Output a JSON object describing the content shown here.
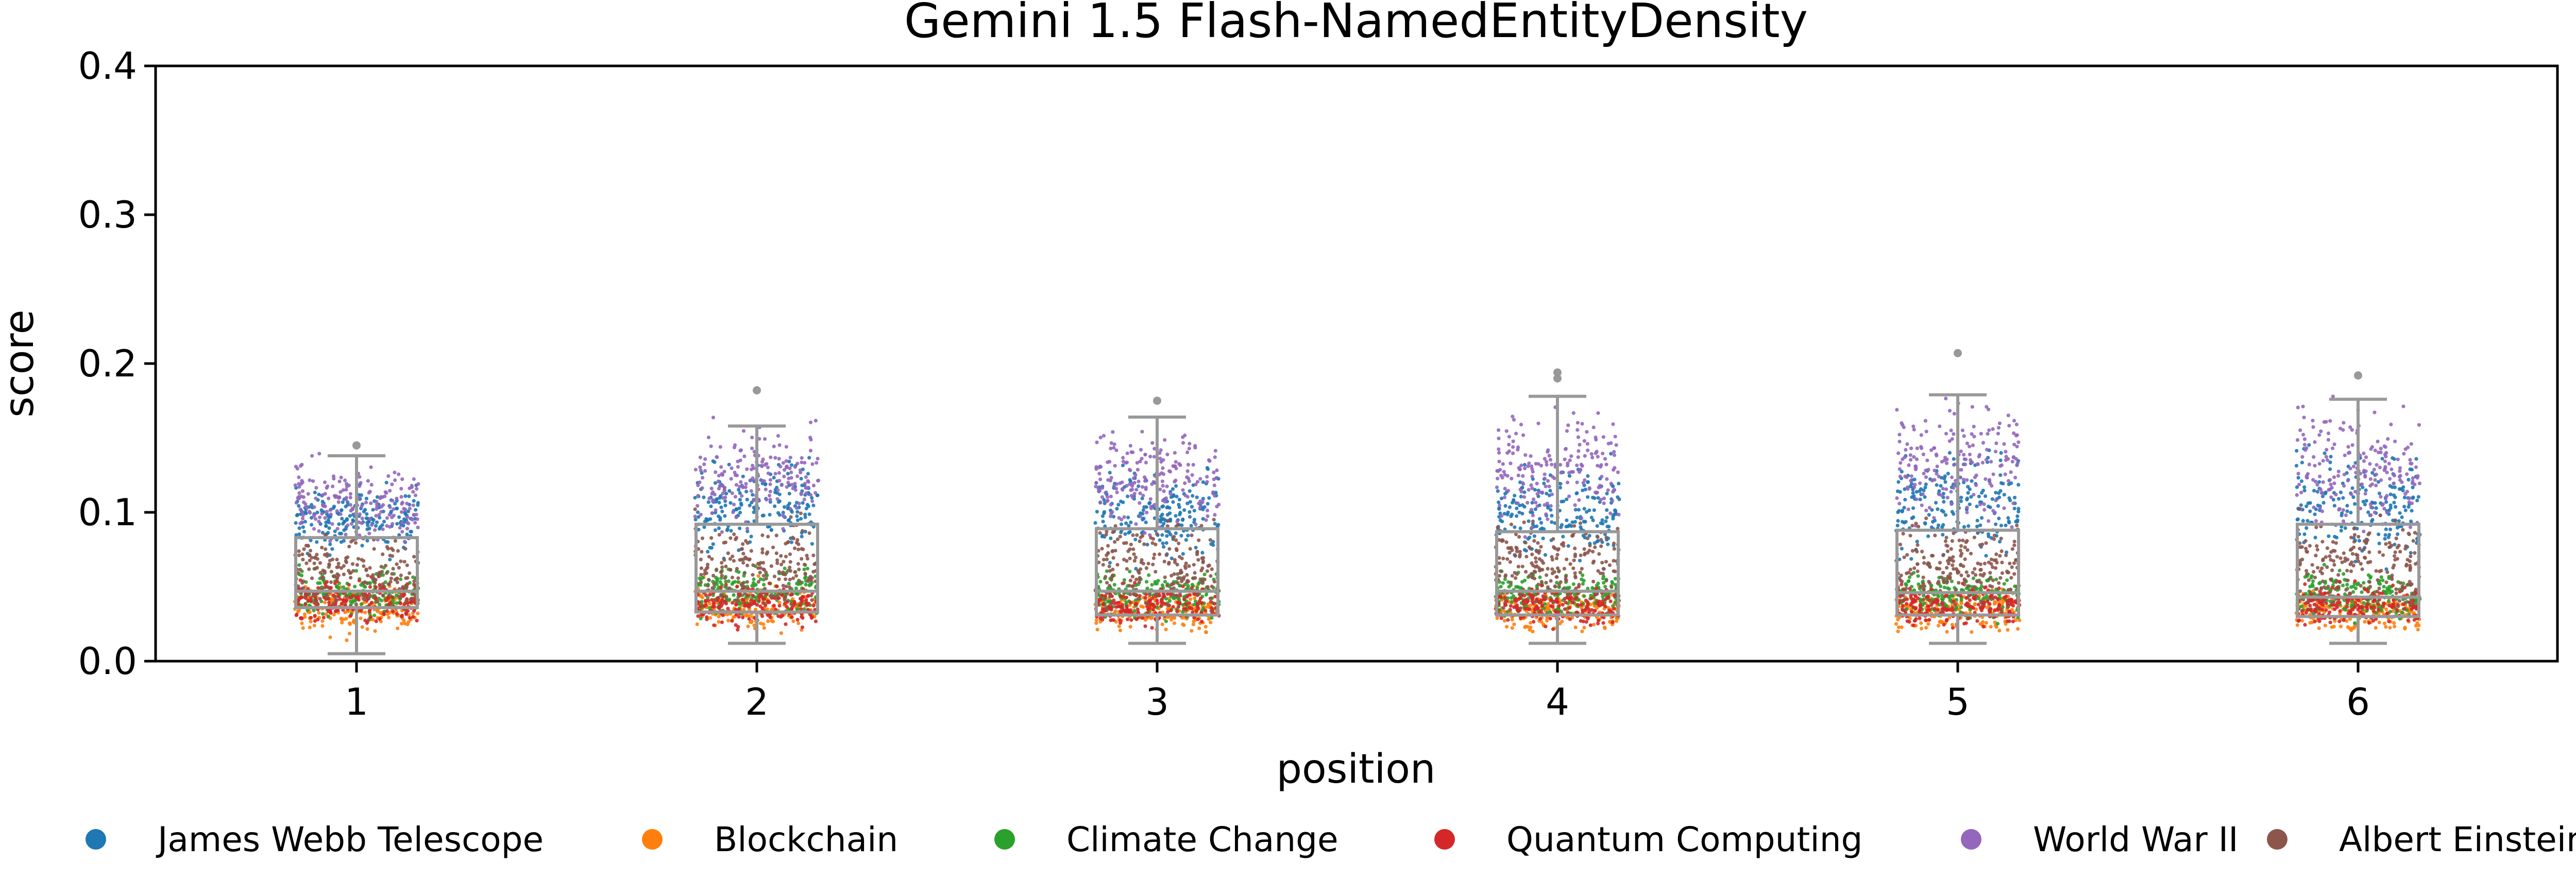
{
  "chart_data": {
    "type": "scatter",
    "subtype": "strip-with-box",
    "title": "Gemini 1.5 Flash-NamedEntityDensity",
    "xlabel": "position",
    "ylabel": "score",
    "ylim": [
      0.0,
      0.4
    ],
    "yticks": [
      "0.0",
      "0.1",
      "0.2",
      "0.3",
      "0.4"
    ],
    "categories": [
      "1",
      "2",
      "3",
      "4",
      "5",
      "6"
    ],
    "box_color": "#999999",
    "boxes": [
      {
        "position": "1",
        "whisker_low": 0.005,
        "q1": 0.036,
        "median": 0.047,
        "q3": 0.083,
        "whisker_high": 0.138,
        "outliers": [
          0.145
        ]
      },
      {
        "position": "2",
        "whisker_low": 0.012,
        "q1": 0.033,
        "median": 0.047,
        "q3": 0.092,
        "whisker_high": 0.158,
        "outliers": [
          0.182
        ]
      },
      {
        "position": "3",
        "whisker_low": 0.012,
        "q1": 0.031,
        "median": 0.047,
        "q3": 0.089,
        "whisker_high": 0.164,
        "outliers": [
          0.175
        ]
      },
      {
        "position": "4",
        "whisker_low": 0.012,
        "q1": 0.031,
        "median": 0.047,
        "q3": 0.087,
        "whisker_high": 0.178,
        "outliers": [
          0.19,
          0.194
        ]
      },
      {
        "position": "5",
        "whisker_low": 0.012,
        "q1": 0.031,
        "median": 0.046,
        "q3": 0.088,
        "whisker_high": 0.179,
        "outliers": [
          0.207
        ]
      },
      {
        "position": "6",
        "whisker_low": 0.012,
        "q1": 0.03,
        "median": 0.043,
        "q3": 0.092,
        "whisker_high": 0.176,
        "outliers": [
          0.192
        ]
      }
    ],
    "series": [
      {
        "name": "James Webb Telescope",
        "color": "#1f77b4",
        "ranges": [
          [
            0.06,
            0.13
          ],
          [
            0.06,
            0.15
          ],
          [
            0.05,
            0.15
          ],
          [
            0.05,
            0.15
          ],
          [
            0.05,
            0.16
          ],
          [
            0.05,
            0.16
          ]
        ]
      },
      {
        "name": "Blockchain",
        "color": "#ff7f0e",
        "ranges": [
          [
            0.01,
            0.06
          ],
          [
            0.012,
            0.06
          ],
          [
            0.012,
            0.055
          ],
          [
            0.012,
            0.055
          ],
          [
            0.012,
            0.055
          ],
          [
            0.012,
            0.055
          ]
        ]
      },
      {
        "name": "Climate Change",
        "color": "#2ca02c",
        "ranges": [
          [
            0.02,
            0.07
          ],
          [
            0.02,
            0.075
          ],
          [
            0.02,
            0.07
          ],
          [
            0.02,
            0.07
          ],
          [
            0.02,
            0.07
          ],
          [
            0.02,
            0.07
          ]
        ]
      },
      {
        "name": "Quantum Computing",
        "color": "#d62728",
        "ranges": [
          [
            0.015,
            0.065
          ],
          [
            0.015,
            0.06
          ],
          [
            0.015,
            0.06
          ],
          [
            0.015,
            0.06
          ],
          [
            0.015,
            0.06
          ],
          [
            0.015,
            0.06
          ]
        ]
      },
      {
        "name": "World War II",
        "color": "#9467bd",
        "ranges": [
          [
            0.07,
            0.145
          ],
          [
            0.07,
            0.18
          ],
          [
            0.07,
            0.175
          ],
          [
            0.07,
            0.19
          ],
          [
            0.07,
            0.2
          ],
          [
            0.07,
            0.19
          ]
        ]
      },
      {
        "name": "Albert Einstein",
        "color": "#8c564b",
        "ranges": [
          [
            0.02,
            0.1
          ],
          [
            0.02,
            0.11
          ],
          [
            0.02,
            0.11
          ],
          [
            0.02,
            0.11
          ],
          [
            0.02,
            0.11
          ],
          [
            0.02,
            0.11
          ]
        ]
      }
    ],
    "legend": {
      "position": "bottom",
      "entries": [
        "James Webb Telescope",
        "Blockchain",
        "Climate Change",
        "Quantum Computing",
        "World War II",
        "Albert Einstein"
      ]
    },
    "grid": false
  }
}
